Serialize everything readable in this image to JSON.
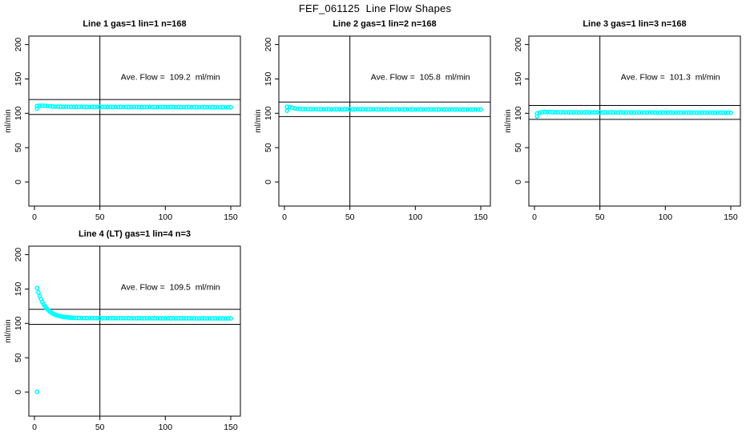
{
  "title": "FEF_061125  Line Flow Shapes",
  "colors": {
    "data_point": "#00ffff",
    "line": "#000000",
    "background": "#ffffff"
  },
  "axes": {
    "x_ticks": [
      0,
      50,
      100,
      150
    ],
    "y_ticks": [
      0,
      50,
      100,
      150,
      200
    ],
    "ylabel": "ml/min",
    "vline_x": 50
  },
  "chart_data": [
    {
      "type": "scatter",
      "title": "Line 1 gas=1 lin=1 n=168",
      "annotation": "Ave. Flow =  109.2  ml/min",
      "ave_flow": 109.2,
      "ref_upper": 120.1,
      "ref_lower": 98.3,
      "vline_x": 50,
      "row": 0,
      "col": 0,
      "x": [
        2,
        2,
        4,
        6,
        8,
        10,
        12,
        14,
        16,
        18,
        20,
        22,
        24,
        26,
        28,
        30,
        32,
        34,
        36,
        38,
        40,
        42,
        44,
        46,
        48,
        50,
        52,
        54,
        56,
        58,
        60,
        62,
        64,
        66,
        68,
        70,
        72,
        74,
        76,
        78,
        80,
        82,
        84,
        86,
        88,
        90,
        92,
        94,
        96,
        98,
        100,
        102,
        104,
        106,
        108,
        110,
        112,
        114,
        116,
        118,
        120,
        122,
        124,
        126,
        128,
        130,
        132,
        134,
        136,
        138,
        140,
        142,
        144,
        146,
        148,
        150
      ],
      "y": [
        106.8,
        110.6,
        111.0,
        111.1,
        110.9,
        110.6,
        110.3,
        110.0,
        109.8,
        109.7,
        109.6,
        109.5,
        109.6,
        109.4,
        109.5,
        109.3,
        109.5,
        109.4,
        109.6,
        109.3,
        109.4,
        109.2,
        109.5,
        109.3,
        109.4,
        109.2,
        109.3,
        109.4,
        109.2,
        109.3,
        109.1,
        109.4,
        109.2,
        109.3,
        109.1,
        109.3,
        109.2,
        109.0,
        109.3,
        109.1,
        109.2,
        109.0,
        109.2,
        109.1,
        109.3,
        109.0,
        109.1,
        108.9,
        109.2,
        109.0,
        109.1,
        108.9,
        109.1,
        109.0,
        108.9,
        109.1,
        108.8,
        109.0,
        108.9,
        109.1,
        108.8,
        109.0,
        108.9,
        108.8,
        109.0,
        108.8,
        108.9,
        108.7,
        108.9,
        108.8,
        108.7,
        108.9,
        108.7,
        108.8,
        108.6,
        108.8
      ]
    },
    {
      "type": "scatter",
      "title": "Line 2 gas=1 lin=2 n=168",
      "annotation": "Ave. Flow =  105.8  ml/min",
      "ave_flow": 105.8,
      "ref_upper": 116.4,
      "ref_lower": 95.2,
      "vline_x": 50,
      "row": 0,
      "col": 1,
      "x": [
        2,
        2,
        4,
        6,
        8,
        10,
        12,
        14,
        16,
        18,
        20,
        22,
        24,
        26,
        28,
        30,
        32,
        34,
        36,
        38,
        40,
        42,
        44,
        46,
        48,
        50,
        52,
        54,
        56,
        58,
        60,
        62,
        64,
        66,
        68,
        70,
        72,
        74,
        76,
        78,
        80,
        82,
        84,
        86,
        88,
        90,
        92,
        94,
        96,
        98,
        100,
        102,
        104,
        106,
        108,
        110,
        112,
        114,
        116,
        118,
        120,
        122,
        124,
        126,
        128,
        130,
        132,
        134,
        136,
        138,
        140,
        142,
        144,
        146,
        148,
        150
      ],
      "y": [
        103.8,
        109.5,
        108.9,
        108.0,
        107.2,
        106.7,
        106.4,
        106.2,
        106.1,
        106.0,
        106.0,
        105.9,
        106.0,
        105.9,
        105.8,
        105.9,
        105.8,
        105.9,
        105.7,
        105.9,
        105.8,
        105.9,
        105.7,
        105.8,
        105.9,
        105.7,
        105.8,
        105.7,
        105.9,
        105.7,
        105.8,
        105.6,
        105.8,
        105.7,
        105.8,
        105.6,
        105.8,
        105.7,
        105.6,
        105.8,
        105.6,
        105.7,
        105.6,
        105.8,
        105.6,
        105.7,
        105.5,
        105.7,
        105.6,
        105.7,
        105.5,
        105.7,
        105.6,
        105.5,
        105.7,
        105.5,
        105.6,
        105.5,
        105.7,
        105.5,
        105.6,
        105.4,
        105.6,
        105.5,
        105.6,
        105.4,
        105.6,
        105.5,
        105.4,
        105.6,
        105.4,
        105.5,
        105.4,
        105.6,
        105.4,
        105.5
      ]
    },
    {
      "type": "scatter",
      "title": "Line 3 gas=1 lin=3 n=168",
      "annotation": "Ave. Flow =  101.3  ml/min",
      "ave_flow": 101.3,
      "ref_upper": 111.4,
      "ref_lower": 91.2,
      "vline_x": 50,
      "row": 0,
      "col": 2,
      "x": [
        2,
        2,
        4,
        6,
        8,
        10,
        12,
        14,
        16,
        18,
        20,
        22,
        24,
        26,
        28,
        30,
        32,
        34,
        36,
        38,
        40,
        42,
        44,
        46,
        48,
        50,
        52,
        54,
        56,
        58,
        60,
        62,
        64,
        66,
        68,
        70,
        72,
        74,
        76,
        78,
        80,
        82,
        84,
        86,
        88,
        90,
        92,
        94,
        96,
        98,
        100,
        102,
        104,
        106,
        108,
        110,
        112,
        114,
        116,
        118,
        120,
        122,
        124,
        126,
        128,
        130,
        132,
        134,
        136,
        138,
        140,
        142,
        144,
        146,
        148,
        150
      ],
      "y": [
        95.5,
        99.9,
        101.0,
        101.7,
        102.0,
        101.9,
        101.8,
        101.6,
        101.5,
        101.5,
        101.4,
        101.5,
        101.4,
        101.3,
        101.5,
        101.3,
        101.4,
        101.2,
        101.4,
        101.3,
        101.4,
        101.2,
        101.4,
        101.3,
        101.2,
        101.4,
        101.2,
        101.3,
        101.2,
        101.4,
        101.2,
        101.3,
        101.1,
        101.3,
        101.2,
        101.3,
        101.1,
        101.3,
        101.2,
        101.1,
        101.3,
        101.1,
        101.2,
        101.1,
        101.3,
        101.1,
        101.2,
        101.0,
        101.2,
        101.1,
        101.2,
        101.0,
        101.2,
        101.1,
        101.0,
        101.2,
        101.0,
        101.1,
        101.0,
        101.2,
        101.0,
        101.1,
        100.9,
        101.1,
        101.0,
        101.1,
        100.9,
        101.1,
        101.0,
        100.9,
        101.1,
        100.9,
        101.0,
        100.9,
        101.1,
        100.9
      ]
    },
    {
      "type": "scatter",
      "title": "Line 4 (LT) gas=1 lin=4 n=3",
      "annotation": "Ave. Flow =  109.5  ml/min",
      "ave_flow": 109.5,
      "ref_upper": 120.5,
      "ref_lower": 98.6,
      "vline_x": 50,
      "row": 1,
      "col": 0,
      "x": [
        2,
        2,
        3,
        4,
        5,
        6,
        7,
        8,
        9,
        10,
        11,
        12,
        13,
        14,
        15,
        16,
        17,
        18,
        19,
        20,
        21,
        22,
        23,
        24,
        25,
        26,
        27,
        28,
        29,
        30,
        32,
        34,
        36,
        38,
        40,
        42,
        44,
        46,
        48,
        50,
        52,
        54,
        56,
        58,
        60,
        62,
        64,
        66,
        68,
        70,
        72,
        74,
        76,
        78,
        80,
        82,
        84,
        86,
        88,
        90,
        92,
        94,
        96,
        98,
        100,
        102,
        104,
        106,
        108,
        110,
        112,
        114,
        116,
        118,
        120,
        122,
        124,
        126,
        128,
        130,
        132,
        134,
        136,
        138,
        140,
        142,
        144,
        146,
        148,
        150
      ],
      "y": [
        0.5,
        151.5,
        145.2,
        139.8,
        135.2,
        131.2,
        127.9,
        125.0,
        122.5,
        120.3,
        118.5,
        116.9,
        115.6,
        114.4,
        113.4,
        112.6,
        111.9,
        111.2,
        110.7,
        110.3,
        109.9,
        109.5,
        109.2,
        109.0,
        108.8,
        108.6,
        108.4,
        108.3,
        108.2,
        108.1,
        107.9,
        107.8,
        107.8,
        107.7,
        107.7,
        107.6,
        107.7,
        107.6,
        107.6,
        107.5,
        107.6,
        107.5,
        107.6,
        107.5,
        107.5,
        107.6,
        107.5,
        107.5,
        107.4,
        107.5,
        107.5,
        107.4,
        107.5,
        107.4,
        107.5,
        107.4,
        107.4,
        107.5,
        107.4,
        107.4,
        107.5,
        107.4,
        107.4,
        107.3,
        107.4,
        107.4,
        107.3,
        107.4,
        107.3,
        107.4,
        107.3,
        107.4,
        107.3,
        107.3,
        107.4,
        107.3,
        107.3,
        107.2,
        107.3,
        107.3,
        107.2,
        107.3,
        107.2,
        107.3,
        107.2,
        107.3,
        107.2,
        107.2,
        107.3,
        107.2
      ]
    }
  ]
}
